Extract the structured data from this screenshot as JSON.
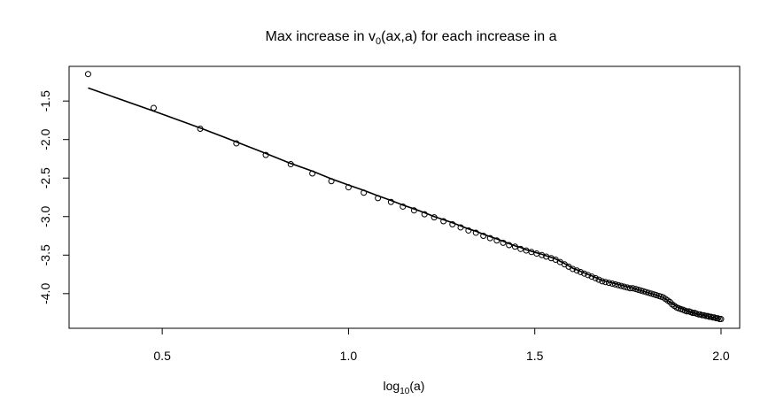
{
  "chart_data": {
    "type": "scatter",
    "title_main": "Max increase in v",
    "title_sub": "0",
    "title_rest": "(ax,a) for each increase in a",
    "xlabel_main": "log",
    "xlabel_sub": "10",
    "xlabel_rest": "(a)",
    "ylabel": "",
    "xlim": [
      0.25,
      2.05
    ],
    "ylim": [
      -4.45,
      -1.05
    ],
    "x_ticks": [
      0.5,
      1.0,
      1.5,
      2.0
    ],
    "x_tick_labels": [
      "0.5",
      "1.0",
      "1.5",
      "2.0"
    ],
    "y_ticks": [
      -1.5,
      -2.0,
      -2.5,
      -3.0,
      -3.5,
      -4.0
    ],
    "y_tick_labels": [
      "-1.5",
      "-2.0",
      "-2.5",
      "-3.0",
      "-3.5",
      "-4.0"
    ],
    "grid": false,
    "series": [
      {
        "kind": "points",
        "marker": "open-circle",
        "x": [
          0.301,
          0.477,
          0.602,
          0.699,
          0.778,
          0.845,
          0.903,
          0.954,
          1.0,
          1.041,
          1.079,
          1.114,
          1.146,
          1.176,
          1.204,
          1.23,
          1.255,
          1.279,
          1.301,
          1.322,
          1.342,
          1.362,
          1.38,
          1.398,
          1.415,
          1.431,
          1.447,
          1.462,
          1.477,
          1.491,
          1.505,
          1.519,
          1.531,
          1.544,
          1.556,
          1.568,
          1.58,
          1.591,
          1.602,
          1.613,
          1.623,
          1.633,
          1.643,
          1.653,
          1.663,
          1.672,
          1.681,
          1.69,
          1.699,
          1.708,
          1.716,
          1.724,
          1.732,
          1.74,
          1.748,
          1.756,
          1.763,
          1.771,
          1.778,
          1.785,
          1.792,
          1.799,
          1.806,
          1.813,
          1.82,
          1.826,
          1.833,
          1.839,
          1.845,
          1.851,
          1.857,
          1.863,
          1.869,
          1.875,
          1.881,
          1.886,
          1.892,
          1.898,
          1.903,
          1.908,
          1.914,
          1.919,
          1.924,
          1.929,
          1.934,
          1.94,
          1.944,
          1.949,
          1.954,
          1.959,
          1.964,
          1.968,
          1.973,
          1.978,
          1.982,
          1.987,
          1.991,
          1.996,
          2.0
        ],
        "y": [
          -1.15,
          -1.59,
          -1.86,
          -2.05,
          -2.2,
          -2.32,
          -2.44,
          -2.54,
          -2.62,
          -2.69,
          -2.76,
          -2.81,
          -2.87,
          -2.92,
          -2.97,
          -3.01,
          -3.06,
          -3.1,
          -3.14,
          -3.18,
          -3.21,
          -3.25,
          -3.28,
          -3.31,
          -3.34,
          -3.37,
          -3.39,
          -3.42,
          -3.44,
          -3.46,
          -3.48,
          -3.5,
          -3.52,
          -3.54,
          -3.56,
          -3.59,
          -3.62,
          -3.65,
          -3.68,
          -3.7,
          -3.72,
          -3.74,
          -3.76,
          -3.78,
          -3.8,
          -3.82,
          -3.84,
          -3.85,
          -3.86,
          -3.87,
          -3.88,
          -3.89,
          -3.9,
          -3.91,
          -3.92,
          -3.93,
          -3.93,
          -3.94,
          -3.95,
          -3.96,
          -3.97,
          -3.98,
          -3.99,
          -4.0,
          -4.01,
          -4.02,
          -4.03,
          -4.04,
          -4.05,
          -4.07,
          -4.09,
          -4.11,
          -4.14,
          -4.16,
          -4.18,
          -4.19,
          -4.2,
          -4.21,
          -4.22,
          -4.23,
          -4.23,
          -4.24,
          -4.25,
          -4.25,
          -4.26,
          -4.27,
          -4.27,
          -4.28,
          -4.28,
          -4.29,
          -4.29,
          -4.3,
          -4.3,
          -4.31,
          -4.31,
          -4.32,
          -4.32,
          -4.33,
          -4.33
        ]
      },
      {
        "kind": "line",
        "x": [
          0.301,
          0.477,
          0.602,
          0.699,
          0.778,
          0.845,
          0.903,
          0.954,
          1.0,
          1.041,
          1.079,
          1.114,
          1.146,
          1.176,
          1.204,
          1.23,
          1.255,
          1.279,
          1.301,
          1.322,
          1.342,
          1.362,
          1.38,
          1.398,
          1.415,
          1.431,
          1.447,
          1.462,
          1.477,
          1.491,
          1.505,
          1.519,
          1.531,
          1.544,
          1.556,
          1.568,
          1.58,
          1.591,
          1.602,
          1.613,
          1.623,
          1.633,
          1.643,
          1.653,
          1.663,
          1.672,
          1.681,
          1.69,
          1.699,
          1.708,
          1.716,
          1.724,
          1.732,
          1.74,
          1.748,
          1.756,
          1.763,
          1.771,
          1.778,
          1.785,
          1.792,
          1.799,
          1.806,
          1.813,
          1.82,
          1.826,
          1.833,
          1.839,
          1.845,
          1.851,
          1.857,
          1.863,
          1.869,
          1.875,
          1.881,
          1.886,
          1.892,
          1.898,
          1.903,
          1.908,
          1.914,
          1.919,
          1.924,
          1.929,
          1.934,
          1.94,
          1.944,
          1.949,
          1.954,
          1.959,
          1.964,
          1.968,
          1.973,
          1.978,
          1.982,
          1.987,
          1.991,
          1.996,
          2.0
        ],
        "y": [
          -1.33,
          -1.63,
          -1.85,
          -2.03,
          -2.18,
          -2.31,
          -2.41,
          -2.51,
          -2.59,
          -2.66,
          -2.73,
          -2.79,
          -2.85,
          -2.9,
          -2.95,
          -3.0,
          -3.04,
          -3.08,
          -3.12,
          -3.16,
          -3.19,
          -3.23,
          -3.26,
          -3.29,
          -3.32,
          -3.35,
          -3.38,
          -3.4,
          -3.43,
          -3.45,
          -3.47,
          -3.49,
          -3.51,
          -3.53,
          -3.55,
          -3.58,
          -3.61,
          -3.64,
          -3.67,
          -3.69,
          -3.71,
          -3.73,
          -3.75,
          -3.77,
          -3.79,
          -3.81,
          -3.83,
          -3.84,
          -3.85,
          -3.86,
          -3.87,
          -3.88,
          -3.89,
          -3.9,
          -3.91,
          -3.92,
          -3.93,
          -3.94,
          -3.95,
          -3.96,
          -3.97,
          -3.98,
          -3.99,
          -4.0,
          -4.01,
          -4.02,
          -4.03,
          -4.04,
          -4.05,
          -4.07,
          -4.09,
          -4.11,
          -4.13,
          -4.15,
          -4.17,
          -4.18,
          -4.19,
          -4.2,
          -4.21,
          -4.22,
          -4.23,
          -4.24,
          -4.25,
          -4.25,
          -4.26,
          -4.27,
          -4.27,
          -4.28,
          -4.28,
          -4.29,
          -4.29,
          -4.3,
          -4.3,
          -4.31,
          -4.31,
          -4.32,
          -4.32,
          -4.33,
          -4.33
        ]
      }
    ]
  }
}
